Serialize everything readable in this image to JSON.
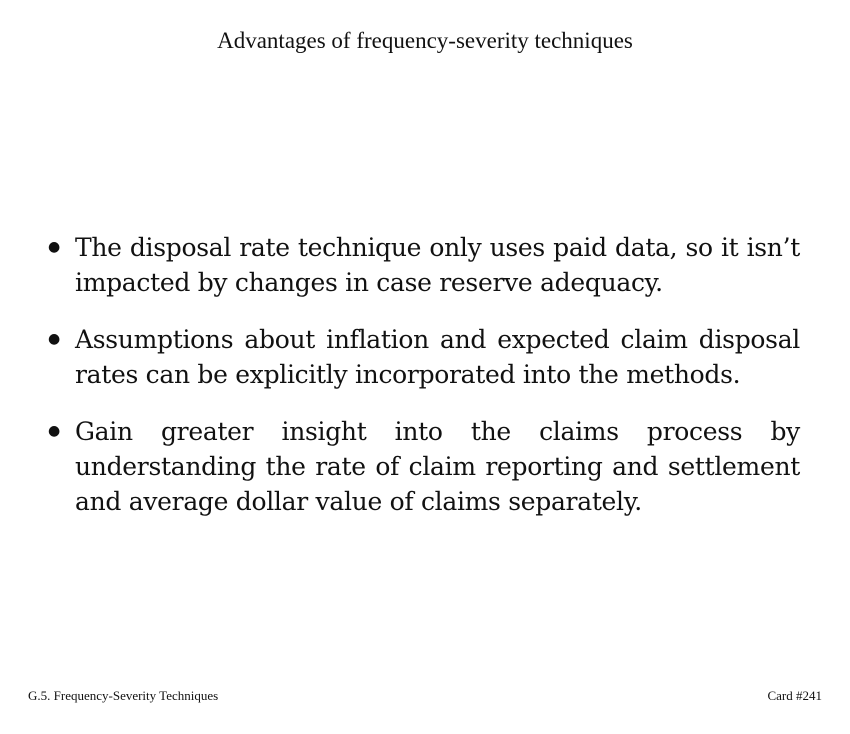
{
  "title": "Advantages of frequency-severity techniques",
  "bullets": [
    {
      "text": "The disposal rate technique only uses paid data, so it isn’t impacted by changes in case reserve adequacy."
    },
    {
      "text": "Assumptions about inflation and expected claim disposal rates can be explicitly incorporated into the methods."
    },
    {
      "text": "Gain greater insight into the claims process by understanding the rate of claim reporting and settlement and average dollar value of claims separately."
    }
  ],
  "footer": {
    "section": "G.5. Frequency-Severity Techniques",
    "card": "Card #241"
  }
}
